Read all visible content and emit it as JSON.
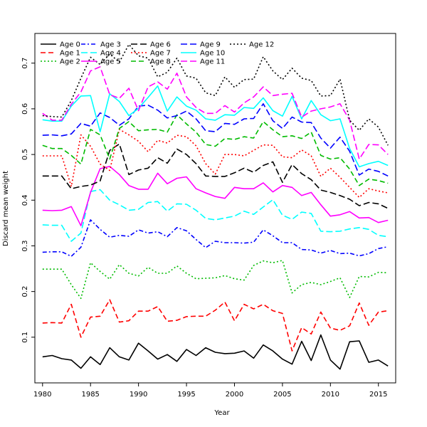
{
  "chart_data": {
    "type": "line",
    "title": "",
    "xlabel": "Year",
    "ylabel": "Discard mean weight",
    "xlim": [
      1979.2,
      2016.8
    ],
    "ylim": [
      0.0,
      0.765
    ],
    "xticks": [
      1980,
      1985,
      1990,
      1995,
      2000,
      2005,
      2010,
      2015
    ],
    "yticks": [
      0.1,
      0.2,
      0.3,
      0.4,
      0.5,
      0.6,
      0.7
    ],
    "grid": false,
    "legend_position": "top-left",
    "x": [
      1980,
      1981,
      1982,
      1983,
      1984,
      1985,
      1986,
      1987,
      1988,
      1989,
      1990,
      1991,
      1992,
      1993,
      1994,
      1995,
      1996,
      1997,
      1998,
      1999,
      2000,
      2001,
      2002,
      2003,
      2004,
      2005,
      2006,
      2007,
      2008,
      2009,
      2010,
      2011,
      2012,
      2013,
      2014,
      2015,
      2016
    ],
    "series": [
      {
        "name": "Age 0",
        "color": "#000000",
        "dash": "solid",
        "values": [
          0.057,
          0.06,
          0.053,
          0.05,
          0.032,
          0.057,
          0.04,
          0.077,
          0.057,
          0.05,
          0.087,
          0.07,
          0.052,
          0.062,
          0.047,
          0.073,
          0.06,
          0.077,
          0.067,
          0.064,
          0.065,
          0.07,
          0.054,
          0.083,
          0.07,
          0.052,
          0.041,
          0.091,
          0.049,
          0.105,
          0.05,
          0.03,
          0.09,
          0.092,
          0.045,
          0.05,
          0.037
        ]
      },
      {
        "name": "Age 1",
        "color": "#ff0000",
        "dash": "dash",
        "values": [
          0.131,
          0.132,
          0.131,
          0.172,
          0.1,
          0.144,
          0.146,
          0.182,
          0.133,
          0.136,
          0.157,
          0.157,
          0.167,
          0.135,
          0.137,
          0.145,
          0.146,
          0.146,
          0.159,
          0.177,
          0.136,
          0.172,
          0.162,
          0.172,
          0.158,
          0.152,
          0.07,
          0.121,
          0.107,
          0.155,
          0.12,
          0.115,
          0.125,
          0.175,
          0.126,
          0.155,
          0.158
        ]
      },
      {
        "name": "Age 2",
        "color": "#00bb00",
        "dash": "dot",
        "values": [
          0.249,
          0.249,
          0.249,
          0.215,
          0.185,
          0.263,
          0.244,
          0.227,
          0.259,
          0.24,
          0.234,
          0.253,
          0.24,
          0.24,
          0.256,
          0.24,
          0.228,
          0.229,
          0.23,
          0.235,
          0.228,
          0.225,
          0.257,
          0.267,
          0.263,
          0.268,
          0.197,
          0.215,
          0.22,
          0.215,
          0.222,
          0.23,
          0.187,
          0.233,
          0.232,
          0.242,
          0.241
        ]
      },
      {
        "name": "Age 3",
        "color": "#0000ff",
        "dash": "dashdot",
        "values": [
          0.286,
          0.287,
          0.287,
          0.277,
          0.297,
          0.357,
          0.336,
          0.319,
          0.323,
          0.321,
          0.335,
          0.328,
          0.331,
          0.32,
          0.34,
          0.333,
          0.314,
          0.296,
          0.31,
          0.307,
          0.307,
          0.306,
          0.308,
          0.335,
          0.322,
          0.307,
          0.307,
          0.292,
          0.291,
          0.284,
          0.29,
          0.283,
          0.284,
          0.278,
          0.283,
          0.294,
          0.298
        ]
      },
      {
        "name": "Age 4",
        "color": "#00ffff",
        "dash": "longdash",
        "values": [
          0.346,
          0.345,
          0.345,
          0.31,
          0.328,
          0.419,
          0.423,
          0.4,
          0.39,
          0.378,
          0.38,
          0.395,
          0.397,
          0.376,
          0.392,
          0.391,
          0.378,
          0.36,
          0.357,
          0.361,
          0.365,
          0.376,
          0.369,
          0.385,
          0.401,
          0.367,
          0.358,
          0.374,
          0.371,
          0.332,
          0.331,
          0.332,
          0.337,
          0.34,
          0.336,
          0.323,
          0.32
        ]
      },
      {
        "name": "Age 5",
        "color": "#ff00ff",
        "dash": "solid",
        "values": [
          0.378,
          0.377,
          0.378,
          0.386,
          0.344,
          0.417,
          0.469,
          0.474,
          0.456,
          0.432,
          0.424,
          0.424,
          0.459,
          0.436,
          0.448,
          0.451,
          0.425,
          0.416,
          0.408,
          0.404,
          0.428,
          0.425,
          0.425,
          0.438,
          0.418,
          0.432,
          0.428,
          0.41,
          0.417,
          0.39,
          0.365,
          0.368,
          0.375,
          0.361,
          0.362,
          0.351,
          0.356
        ]
      },
      {
        "name": "Age 6",
        "color": "#000000",
        "dash": "longdash",
        "values": [
          0.453,
          0.453,
          0.453,
          0.425,
          0.43,
          0.433,
          0.442,
          0.509,
          0.523,
          0.456,
          0.466,
          0.47,
          0.493,
          0.481,
          0.512,
          0.5,
          0.48,
          0.453,
          0.452,
          0.452,
          0.46,
          0.47,
          0.461,
          0.476,
          0.484,
          0.439,
          0.478,
          0.458,
          0.445,
          0.422,
          0.417,
          0.41,
          0.402,
          0.388,
          0.395,
          0.392,
          0.382
        ]
      },
      {
        "name": "Age 7",
        "color": "#ff0000",
        "dash": "dot",
        "values": [
          0.497,
          0.497,
          0.497,
          0.43,
          0.543,
          0.518,
          0.479,
          0.465,
          0.555,
          0.543,
          0.529,
          0.506,
          0.531,
          0.525,
          0.542,
          0.539,
          0.519,
          0.48,
          0.457,
          0.5,
          0.5,
          0.497,
          0.509,
          0.521,
          0.52,
          0.495,
          0.493,
          0.51,
          0.497,
          0.452,
          0.47,
          0.45,
          0.428,
          0.406,
          0.425,
          0.42,
          0.416
        ]
      },
      {
        "name": "Age 8",
        "color": "#00bb00",
        "dash": "dash",
        "values": [
          0.52,
          0.513,
          0.513,
          0.498,
          0.479,
          0.555,
          0.543,
          0.49,
          0.557,
          0.572,
          0.552,
          0.554,
          0.555,
          0.549,
          0.587,
          0.567,
          0.549,
          0.522,
          0.518,
          0.535,
          0.533,
          0.539,
          0.536,
          0.572,
          0.554,
          0.539,
          0.541,
          0.535,
          0.549,
          0.498,
          0.49,
          0.493,
          0.468,
          0.432,
          0.446,
          0.443,
          0.437
        ]
      },
      {
        "name": "Age 9",
        "color": "#0000ff",
        "dash": "longdash",
        "values": [
          0.542,
          0.543,
          0.541,
          0.545,
          0.568,
          0.562,
          0.591,
          0.581,
          0.564,
          0.578,
          0.606,
          0.608,
          0.597,
          0.58,
          0.585,
          0.595,
          0.578,
          0.552,
          0.55,
          0.568,
          0.566,
          0.578,
          0.579,
          0.611,
          0.574,
          0.557,
          0.582,
          0.571,
          0.57,
          0.536,
          0.514,
          0.538,
          0.507,
          0.455,
          0.468,
          0.463,
          0.453
        ]
      },
      {
        "name": "Age 10",
        "color": "#00ffff",
        "dash": "solid",
        "values": [
          0.576,
          0.573,
          0.573,
          0.606,
          0.628,
          0.629,
          0.55,
          0.633,
          0.616,
          0.585,
          0.601,
          0.625,
          0.65,
          0.595,
          0.626,
          0.606,
          0.597,
          0.578,
          0.575,
          0.587,
          0.586,
          0.603,
          0.601,
          0.624,
          0.596,
          0.584,
          0.627,
          0.578,
          0.618,
          0.587,
          0.574,
          0.578,
          0.513,
          0.473,
          0.48,
          0.485,
          0.476
        ]
      },
      {
        "name": "Age 11",
        "color": "#ff00ff",
        "dash": "longdash",
        "values": [
          0.59,
          0.575,
          0.575,
          0.61,
          0.637,
          0.683,
          0.692,
          0.631,
          0.623,
          0.645,
          0.596,
          0.648,
          0.659,
          0.643,
          0.678,
          0.626,
          0.603,
          0.59,
          0.59,
          0.607,
          0.593,
          0.613,
          0.626,
          0.648,
          0.629,
          0.632,
          0.634,
          0.582,
          0.595,
          0.6,
          0.604,
          0.611,
          0.575,
          0.49,
          0.522,
          0.521,
          0.5
        ]
      },
      {
        "name": "Age 12",
        "color": "#000000",
        "dash": "dot",
        "values": [
          0.585,
          0.583,
          0.582,
          0.618,
          0.667,
          0.713,
          0.697,
          0.72,
          0.702,
          0.741,
          0.716,
          0.711,
          0.67,
          0.68,
          0.711,
          0.672,
          0.667,
          0.635,
          0.629,
          0.67,
          0.647,
          0.664,
          0.665,
          0.714,
          0.683,
          0.664,
          0.689,
          0.667,
          0.662,
          0.628,
          0.629,
          0.665,
          0.575,
          0.553,
          0.578,
          0.56,
          0.52
        ]
      }
    ]
  }
}
